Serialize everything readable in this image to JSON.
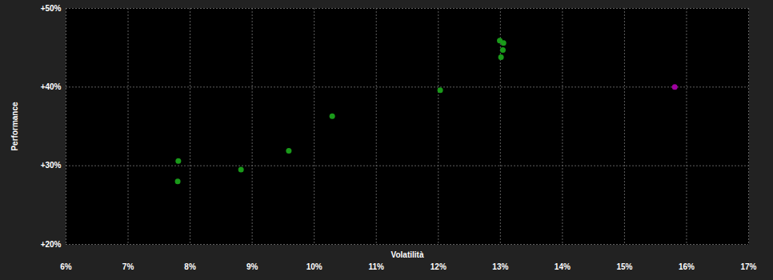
{
  "chart_data": {
    "type": "scatter",
    "x_label": "Volatilità",
    "y_label": "Performance",
    "x": [
      7.81,
      7.8,
      8.82,
      9.59,
      10.29,
      12.03,
      12.99,
      13.05,
      13.04,
      13.01,
      15.81
    ],
    "values": [
      30.6,
      28.0,
      29.5,
      31.9,
      36.3,
      39.6,
      45.9,
      45.6,
      44.7,
      43.8,
      40.0
    ],
    "colors": [
      "#1a9a1a",
      "#1a9a1a",
      "#1a9a1a",
      "#1a9a1a",
      "#1a9a1a",
      "#1a9a1a",
      "#1a9a1a",
      "#1a9a1a",
      "#1a9a1a",
      "#1a9a1a",
      "#a000a0"
    ],
    "xlim": [
      6,
      17
    ],
    "xticks": [
      {
        "value": 6,
        "label": "6%"
      },
      {
        "value": 7,
        "label": "7%"
      },
      {
        "value": 8,
        "label": "8%"
      },
      {
        "value": 9,
        "label": "9%"
      },
      {
        "value": 10,
        "label": "10%"
      },
      {
        "value": 11,
        "label": "11%"
      },
      {
        "value": 12,
        "label": "12%"
      },
      {
        "value": 13,
        "label": "13%"
      },
      {
        "value": 14,
        "label": "14%"
      },
      {
        "value": 15,
        "label": "15%"
      },
      {
        "value": 16,
        "label": "16%"
      },
      {
        "value": 17,
        "label": "17%"
      }
    ],
    "ylim": [
      20,
      50
    ],
    "yticks": [
      {
        "value": 20,
        "label": "+20%"
      },
      {
        "value": 30,
        "label": "+30%"
      },
      {
        "value": 40,
        "label": "+40%"
      },
      {
        "value": 50,
        "label": "+50%"
      }
    ],
    "grid": true
  }
}
